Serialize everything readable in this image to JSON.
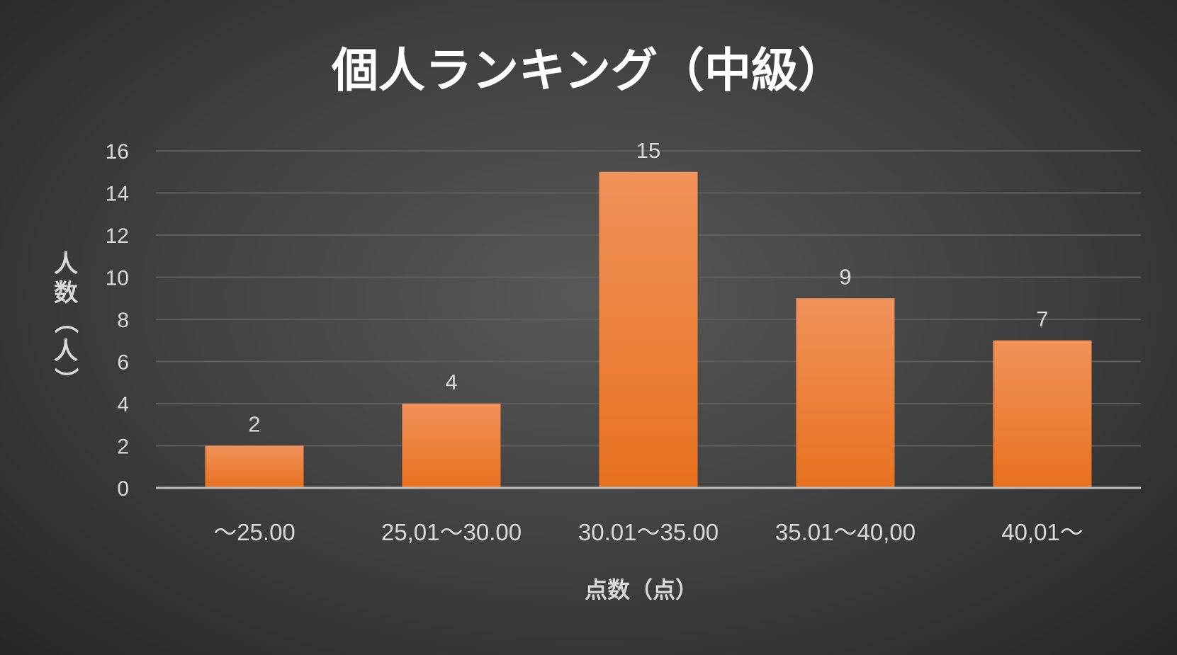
{
  "chart_data": {
    "type": "bar",
    "title": "個人ランキング（中級）",
    "xlabel": "点数（点）",
    "ylabel": "人数（人）",
    "categories": [
      "～25.00",
      "25,01～30.00",
      "30.01～35.00",
      "35.01～40,00",
      "40,01～"
    ],
    "values": [
      2,
      4,
      15,
      9,
      7
    ],
    "ylim": [
      0,
      16
    ],
    "yticks": [
      0,
      2,
      4,
      6,
      8,
      10,
      12,
      14,
      16
    ],
    "grid": true,
    "legend": "none",
    "colors": {
      "bar_top": "#f0925a",
      "bar_bottom": "#e8711f",
      "grid": "#5f5f5f",
      "axis": "#bfbfbf",
      "text": "#d9d9d9",
      "title": "#ffffff"
    }
  }
}
